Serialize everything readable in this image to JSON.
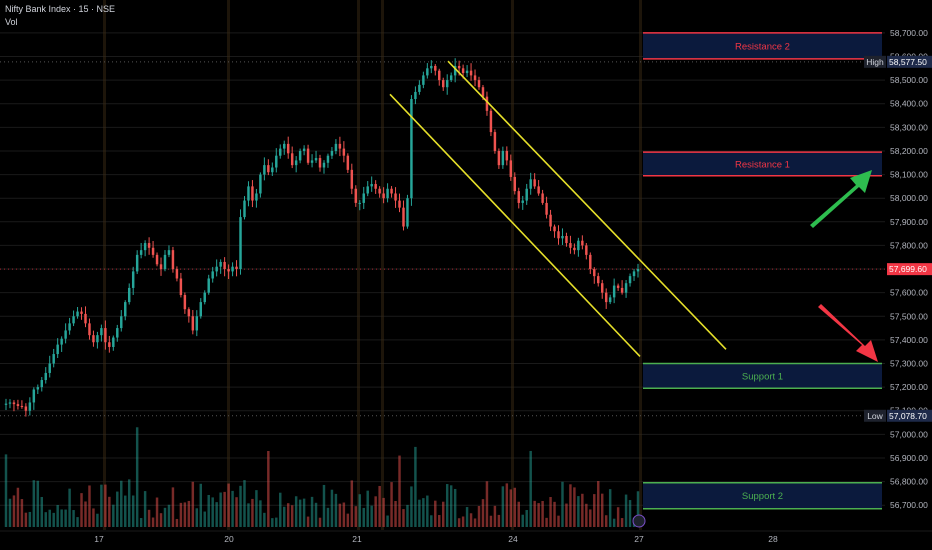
{
  "header": {
    "symbol_line": "Nifty Bank Index · 15 · NSE",
    "indicator": "Vol"
  },
  "colors": {
    "up": "#26a69a",
    "down": "#ef5350",
    "resistance": "#f23645",
    "support": "#4caf50",
    "channel": "#e6e02a",
    "zone_fill_res": "#0b1a3d",
    "zone_fill_sup": "#0b1a3d",
    "arrow_up": "#2ebd4f",
    "arrow_down": "#f23645",
    "session_line": "#3a2a14",
    "price_tag": "#f23645"
  },
  "chart_data": {
    "type": "candlestick",
    "title": "Nifty Bank Index · 15 · NSE",
    "ylim": [
      56650,
      58780
    ],
    "y_ticks": [
      56700,
      56800,
      56900,
      57000,
      57100,
      57200,
      57300,
      57400,
      57500,
      57600,
      57700,
      57800,
      57900,
      58000,
      58100,
      58200,
      58300,
      58400,
      58500,
      58600,
      58700
    ],
    "y_tick_labels": [
      "56,700.00",
      "56,800.00",
      "56,900.00",
      "57,000.00",
      "57,100.00",
      "57,200.00",
      "57,300.00",
      "57,400.00",
      "57,500.00",
      "57,600.00",
      "57,700.00",
      "57,800.00",
      "57,900.00",
      "58,000.00",
      "58,100.00",
      "58,200.00",
      "58,300.00",
      "58,400.00",
      "58,500.00",
      "58,600.00",
      "58,700.00"
    ],
    "x_ticks": [
      "17",
      "20",
      "21",
      "24",
      "27",
      "28"
    ],
    "markers": [
      {
        "label": "High",
        "value": "58,577.50"
      },
      {
        "label": "Low",
        "value": "57,078.70"
      }
    ],
    "last_price": "57,699.60",
    "zones": [
      {
        "name": "Resistance 2",
        "kind": "resistance",
        "top": 58700,
        "bottom": 58590
      },
      {
        "name": "Resistance 1",
        "kind": "resistance",
        "top": 58195,
        "bottom": 58095
      },
      {
        "name": "Support 1",
        "kind": "support",
        "top": 57300,
        "bottom": 57195
      },
      {
        "name": "Support 2",
        "kind": "support",
        "top": 56795,
        "bottom": 56685
      }
    ],
    "closes": [
      57130,
      57135,
      57128,
      57120,
      57118,
      57100,
      57135,
      57190,
      57200,
      57230,
      57260,
      57300,
      57340,
      57380,
      57405,
      57440,
      57470,
      57500,
      57520,
      57510,
      57470,
      57420,
      57390,
      57420,
      57450,
      57390,
      57370,
      57410,
      57450,
      57500,
      57560,
      57620,
      57690,
      57760,
      57780,
      57810,
      57790,
      57760,
      57720,
      57700,
      57760,
      57780,
      57700,
      57660,
      57590,
      57530,
      57500,
      57440,
      57500,
      57560,
      57600,
      57660,
      57690,
      57710,
      57730,
      57700,
      57690,
      57710,
      57700,
      57920,
      57990,
      58050,
      57990,
      58020,
      58100,
      58140,
      58110,
      58130,
      58180,
      58210,
      58230,
      58190,
      58140,
      58160,
      58200,
      58210,
      58150,
      58160,
      58170,
      58130,
      58150,
      58180,
      58200,
      58230,
      58210,
      58180,
      58120,
      58040,
      57980,
      57980,
      58020,
      58050,
      58060,
      58040,
      58020,
      58000,
      58040,
      58020,
      57990,
      57960,
      57880,
      58000,
      58420,
      58450,
      58480,
      58520,
      58550,
      58560,
      58540,
      58500,
      58470,
      58500,
      58520,
      58560,
      58550,
      58530,
      58540,
      58520,
      58500,
      58470,
      58430,
      58370,
      58280,
      58200,
      58140,
      58200,
      58160,
      58090,
      58030,
      57980,
      57990,
      58040,
      58080,
      58050,
      58020,
      57980,
      57930,
      57880,
      57860,
      57830,
      57840,
      57810,
      57790,
      57780,
      57820,
      57800,
      57760,
      57700,
      57670,
      57640,
      57600,
      57560,
      57580,
      57630,
      57620,
      57600,
      57640,
      57670,
      57690,
      57700
    ],
    "volume_note": "volume bars drawn from the same series, scaled to the lower pane"
  }
}
